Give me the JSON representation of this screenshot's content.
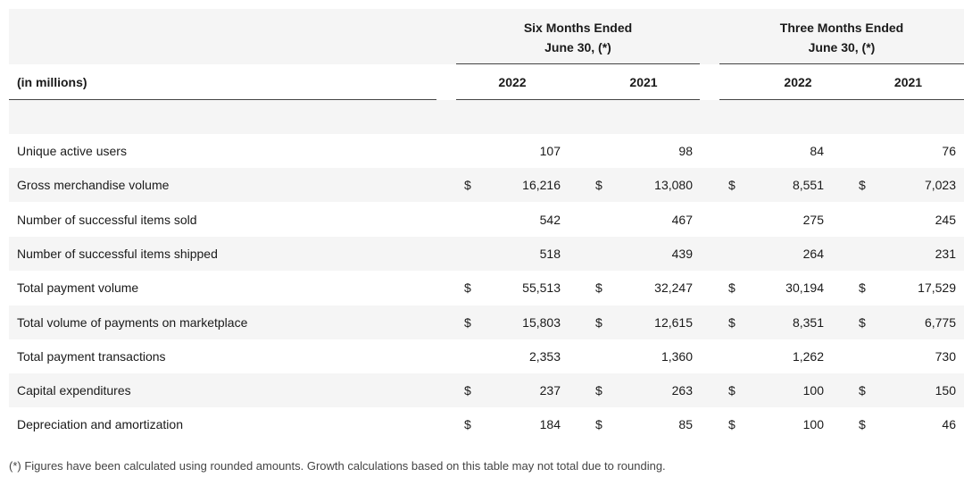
{
  "table": {
    "unit_label": "(in millions)",
    "groups": [
      {
        "title_line1": "Six Months Ended",
        "title_line2": "June 30, (*)"
      },
      {
        "title_line1": "Three Months Ended",
        "title_line2": "June 30, (*)"
      }
    ],
    "years": [
      "2022",
      "2021",
      "2022",
      "2021"
    ],
    "rows": [
      {
        "label": "Unique active users",
        "values": [
          "107",
          "98",
          "84",
          "76"
        ],
        "dollar": false
      },
      {
        "label": "Gross merchandise volume",
        "values": [
          "16,216",
          "13,080",
          "8,551",
          "7,023"
        ],
        "dollar": true
      },
      {
        "label": "Number of successful items sold",
        "values": [
          "542",
          "467",
          "275",
          "245"
        ],
        "dollar": false
      },
      {
        "label": "Number of successful items shipped",
        "values": [
          "518",
          "439",
          "264",
          "231"
        ],
        "dollar": false
      },
      {
        "label": "Total payment volume",
        "values": [
          "55,513",
          "32,247",
          "30,194",
          "17,529"
        ],
        "dollar": true
      },
      {
        "label": "Total volume of payments on marketplace",
        "values": [
          "15,803",
          "12,615",
          "8,351",
          "6,775"
        ],
        "dollar": true
      },
      {
        "label": "Total payment transactions",
        "values": [
          "2,353",
          "1,360",
          "1,262",
          "730"
        ],
        "dollar": false
      },
      {
        "label": "Capital expenditures",
        "values": [
          "237",
          "263",
          "100",
          "150"
        ],
        "dollar": true
      },
      {
        "label": "Depreciation and amortization",
        "values": [
          "184",
          "85",
          "100",
          "46"
        ],
        "dollar": true
      }
    ],
    "currency_symbol": "$"
  },
  "footnote": "(*) Figures have been calculated using rounded amounts. Growth calculations based on this table may not total due to rounding."
}
